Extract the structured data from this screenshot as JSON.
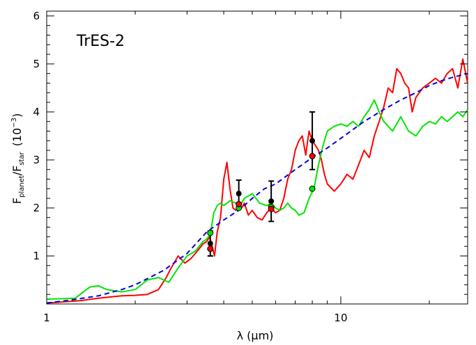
{
  "chart_data": {
    "type": "line",
    "title": "",
    "annotation": "TrES-2",
    "xlabel": {
      "main": "λ (",
      "mu": "μ",
      "rest": "m)"
    },
    "ylabel": {
      "f": "F",
      "planet": "planet",
      "slash": "/F",
      "star": "star",
      "units": "(10",
      "exp": "−3",
      "close": ")"
    },
    "x_scale": "log",
    "xlim": [
      1,
      27
    ],
    "ylim": [
      0,
      6.1
    ],
    "x_ticks": [
      {
        "value": 1,
        "label": "1"
      },
      {
        "value": 10,
        "label": "10"
      }
    ],
    "y_ticks": [
      {
        "value": 1,
        "label": "1"
      },
      {
        "value": 2,
        "label": "2"
      },
      {
        "value": 3,
        "label": "3"
      },
      {
        "value": 4,
        "label": "4"
      },
      {
        "value": 5,
        "label": "5"
      },
      {
        "value": 6,
        "label": "6"
      }
    ],
    "grid": false,
    "colors": {
      "red_model": "#ff0000",
      "green_model": "#00e600",
      "blue_model": "#0000dd",
      "observed": "#000000"
    },
    "series": [
      {
        "style": "solid-red",
        "x": [
          1.0,
          1.3,
          1.5,
          1.8,
          2.0,
          2.2,
          2.4,
          2.55,
          2.65,
          2.8,
          2.95,
          3.1,
          3.2,
          3.3,
          3.4,
          3.5,
          3.58,
          3.65,
          3.72,
          3.8,
          3.9,
          4.0,
          4.1,
          4.2,
          4.3,
          4.4,
          4.5,
          4.6,
          4.7,
          4.85,
          5.0,
          5.2,
          5.4,
          5.6,
          5.8,
          6.0,
          6.2,
          6.4,
          6.6,
          6.8,
          7.0,
          7.2,
          7.4,
          7.6,
          7.8,
          8.0,
          8.2,
          8.4,
          8.6,
          8.8,
          9.0,
          9.5,
          10.0,
          10.5,
          11.0,
          11.5,
          12.0,
          12.5,
          13.0,
          13.5,
          14.0,
          14.5,
          15.0,
          15.5,
          16.0,
          16.5,
          17.0,
          17.5,
          18.0,
          19.0,
          20.0,
          21.0,
          22.0,
          23.0,
          24.0,
          25.0,
          26.0,
          27.0
        ],
        "y": [
          0.02,
          0.07,
          0.12,
          0.17,
          0.18,
          0.2,
          0.3,
          0.55,
          0.75,
          1.0,
          0.85,
          0.95,
          1.05,
          1.15,
          1.25,
          1.3,
          1.4,
          1.2,
          1.0,
          1.5,
          1.8,
          2.6,
          2.95,
          2.4,
          2.0,
          1.95,
          2.05,
          2.0,
          2.1,
          1.85,
          1.95,
          1.8,
          1.75,
          1.9,
          2.0,
          1.9,
          1.95,
          2.2,
          2.6,
          2.8,
          3.2,
          3.4,
          3.5,
          3.1,
          3.6,
          3.4,
          3.3,
          3.2,
          3.0,
          2.7,
          2.5,
          2.35,
          2.5,
          2.7,
          2.6,
          2.9,
          3.2,
          3.05,
          3.5,
          3.8,
          4.1,
          4.5,
          4.4,
          4.9,
          4.8,
          4.6,
          4.5,
          4.0,
          4.3,
          4.5,
          4.6,
          4.7,
          4.6,
          4.8,
          4.9,
          4.5,
          5.1,
          4.6
        ]
      },
      {
        "style": "solid-green",
        "x": [
          1.0,
          1.25,
          1.4,
          1.5,
          1.6,
          1.8,
          2.0,
          2.2,
          2.4,
          2.6,
          2.8,
          3.0,
          3.1,
          3.2,
          3.3,
          3.4,
          3.5,
          3.6,
          3.7,
          3.8,
          3.9,
          4.0,
          4.2,
          4.4,
          4.5,
          4.7,
          5.0,
          5.3,
          5.6,
          5.8,
          6.0,
          6.2,
          6.4,
          6.6,
          6.8,
          7.0,
          7.2,
          7.5,
          7.8,
          8.1,
          8.4,
          8.7,
          9.0,
          9.5,
          10.0,
          10.5,
          11.0,
          11.5,
          12.0,
          12.5,
          13.0,
          13.5,
          14.0,
          14.5,
          15.0,
          16.0,
          17.0,
          18.0,
          19.0,
          20.0,
          21.0,
          22.0,
          23.0,
          24.0,
          25.0,
          26.0,
          27.0
        ],
        "y": [
          0.1,
          0.12,
          0.35,
          0.38,
          0.3,
          0.25,
          0.3,
          0.5,
          0.55,
          0.45,
          0.75,
          1.0,
          1.05,
          1.1,
          1.2,
          1.3,
          1.35,
          1.45,
          1.9,
          2.05,
          2.1,
          2.05,
          2.15,
          2.1,
          2.0,
          2.2,
          2.3,
          2.1,
          2.05,
          2.1,
          2.0,
          1.95,
          2.0,
          2.1,
          2.0,
          1.95,
          1.85,
          1.9,
          2.2,
          2.4,
          2.9,
          3.3,
          3.6,
          3.7,
          3.75,
          3.7,
          3.8,
          3.7,
          3.9,
          4.05,
          4.25,
          4.0,
          3.8,
          3.7,
          3.6,
          3.9,
          3.6,
          3.5,
          3.7,
          3.8,
          3.75,
          3.9,
          3.8,
          3.9,
          4.0,
          3.9,
          4.05
        ]
      },
      {
        "style": "dashed-blue",
        "x": [
          1.0,
          1.2,
          1.5,
          1.8,
          2.0,
          2.5,
          3.0,
          3.5,
          4.0,
          4.5,
          5.0,
          5.5,
          6.0,
          7.0,
          8.0,
          9.0,
          10.0,
          12.0,
          14.0,
          16.0,
          18.0,
          20.0,
          22.0,
          24.0,
          27.0
        ],
        "y": [
          0.02,
          0.08,
          0.17,
          0.3,
          0.4,
          0.7,
          1.05,
          1.5,
          1.75,
          1.95,
          2.2,
          2.4,
          2.5,
          2.8,
          3.05,
          3.25,
          3.45,
          3.8,
          4.05,
          4.25,
          4.4,
          4.55,
          4.65,
          4.72,
          4.8
        ]
      }
    ],
    "observed": {
      "x": [
        3.6,
        4.5,
        5.8,
        8.0
      ],
      "y": [
        1.26,
        2.3,
        2.14,
        3.4
      ],
      "err": [
        0.26,
        0.28,
        0.42,
        0.6
      ]
    },
    "red_points": {
      "x": [
        3.6,
        4.5,
        5.8,
        8.0
      ],
      "y": [
        1.15,
        2.08,
        1.98,
        3.08
      ]
    },
    "green_points": {
      "x": [
        3.6,
        4.5,
        5.8,
        8.0
      ],
      "y": [
        1.48,
        2.0,
        2.02,
        2.4
      ]
    }
  }
}
